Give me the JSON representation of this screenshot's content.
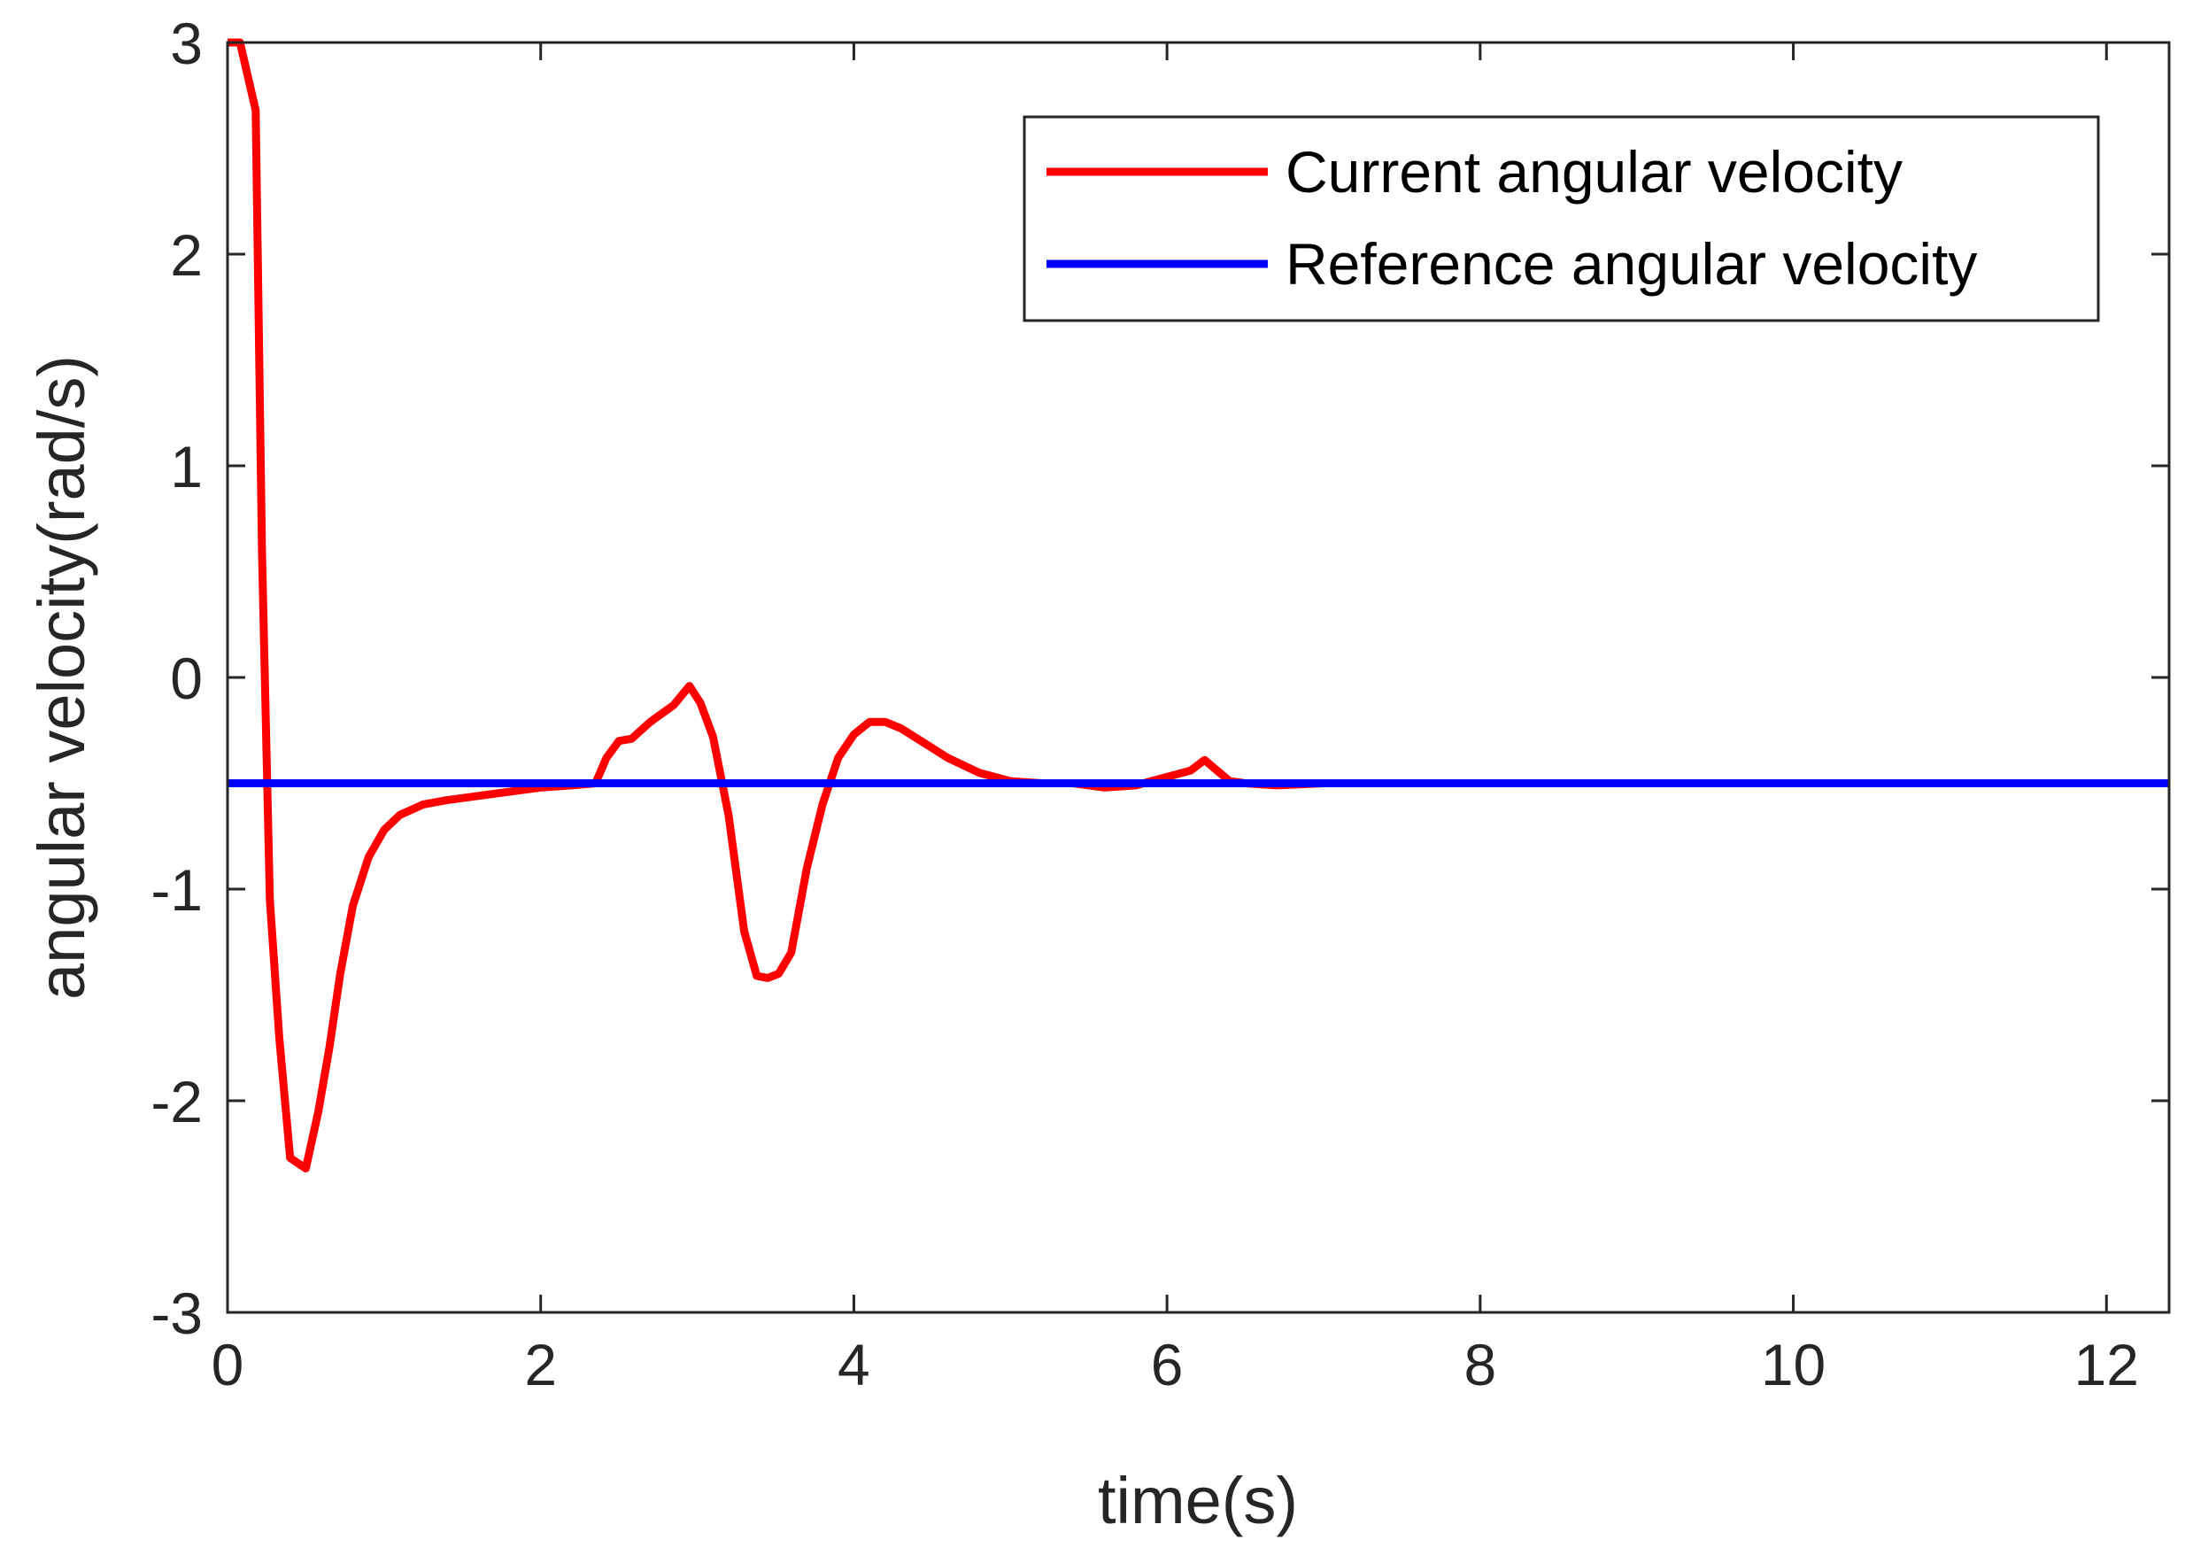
{
  "chart_data": {
    "type": "line",
    "title": "",
    "xlabel": "time(s)",
    "ylabel": "angular velocity(rad/s)",
    "xlim": [
      0,
      12.4
    ],
    "ylim": [
      -3,
      3
    ],
    "xticks": [
      0,
      2,
      4,
      6,
      8,
      10,
      12
    ],
    "xtick_labels": [
      "0",
      "2",
      "4",
      "6",
      "8",
      "10",
      "12"
    ],
    "yticks": [
      -3,
      -2,
      -1,
      0,
      1,
      2,
      3
    ],
    "ytick_labels": [
      "-3",
      "-2",
      "-1",
      "0",
      "1",
      "2",
      "3"
    ],
    "grid": false,
    "legend_position": "top-right",
    "series": [
      {
        "name": "Current angular velocity",
        "color": "#ff0000",
        "x": [
          0,
          0.08,
          0.18,
          0.22,
          0.27,
          0.33,
          0.4,
          0.5,
          0.58,
          0.65,
          0.72,
          0.8,
          0.9,
          1.0,
          1.1,
          1.25,
          1.4,
          1.6,
          1.8,
          2.0,
          2.2,
          2.35,
          2.42,
          2.5,
          2.58,
          2.7,
          2.85,
          2.95,
          3.02,
          3.1,
          3.2,
          3.3,
          3.38,
          3.45,
          3.52,
          3.6,
          3.7,
          3.8,
          3.9,
          4.0,
          4.1,
          4.2,
          4.3,
          4.45,
          4.6,
          4.8,
          5.0,
          5.2,
          5.4,
          5.6,
          5.8,
          6.0,
          6.15,
          6.24,
          6.32,
          6.4,
          6.5,
          6.7,
          7.0,
          7.3,
          12.4
        ],
        "y": [
          3.0,
          3.0,
          2.68,
          0.6,
          -1.05,
          -1.7,
          -2.27,
          -2.32,
          -2.05,
          -1.75,
          -1.4,
          -1.08,
          -0.85,
          -0.72,
          -0.65,
          -0.6,
          -0.58,
          -0.56,
          -0.54,
          -0.52,
          -0.51,
          -0.5,
          -0.38,
          -0.3,
          -0.29,
          -0.21,
          -0.13,
          -0.04,
          -0.12,
          -0.28,
          -0.65,
          -1.2,
          -1.41,
          -1.42,
          -1.4,
          -1.3,
          -0.9,
          -0.6,
          -0.38,
          -0.27,
          -0.21,
          -0.21,
          -0.24,
          -0.31,
          -0.38,
          -0.45,
          -0.49,
          -0.5,
          -0.5,
          -0.52,
          -0.51,
          -0.47,
          -0.44,
          -0.39,
          -0.44,
          -0.49,
          -0.5,
          -0.51,
          -0.5,
          -0.5,
          -0.5
        ]
      },
      {
        "name": "Reference angular velocity",
        "color": "#0000ff",
        "x": [
          0,
          12.4
        ],
        "y": [
          -0.5,
          -0.5
        ]
      }
    ]
  }
}
